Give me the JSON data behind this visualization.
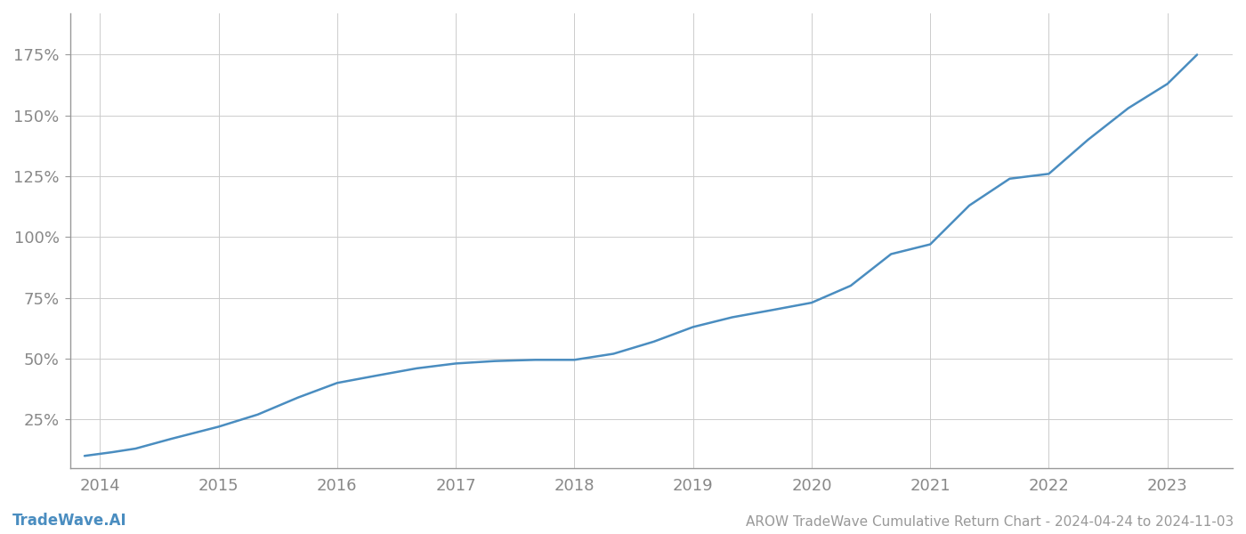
{
  "title": "AROW TradeWave Cumulative Return Chart - 2024-04-24 to 2024-11-03",
  "watermark": "TradeWave.AI",
  "line_color": "#4a8dc0",
  "background_color": "#ffffff",
  "grid_color": "#cccccc",
  "x_years": [
    2014,
    2015,
    2016,
    2017,
    2018,
    2019,
    2020,
    2021,
    2022,
    2023
  ],
  "x_values": [
    2013.87,
    2014.1,
    2014.3,
    2014.6,
    2015.0,
    2015.33,
    2015.67,
    2016.0,
    2016.33,
    2016.67,
    2017.0,
    2017.33,
    2017.67,
    2018.0,
    2018.33,
    2018.67,
    2019.0,
    2019.33,
    2019.67,
    2020.0,
    2020.33,
    2020.67,
    2021.0,
    2021.33,
    2021.67,
    2022.0,
    2022.33,
    2022.67,
    2023.0,
    2023.25
  ],
  "y_values": [
    10.0,
    11.5,
    13.0,
    17.0,
    22.0,
    27.0,
    34.0,
    40.0,
    43.0,
    46.0,
    48.0,
    49.0,
    49.5,
    49.5,
    52.0,
    57.0,
    63.0,
    67.0,
    70.0,
    73.0,
    80.0,
    93.0,
    97.0,
    113.0,
    124.0,
    126.0,
    140.0,
    153.0,
    163.0,
    175.0
  ],
  "yticks": [
    25,
    50,
    75,
    100,
    125,
    150,
    175
  ],
  "ylim": [
    5,
    192
  ],
  "xlim": [
    2013.75,
    2023.55
  ],
  "title_fontsize": 11,
  "tick_fontsize": 13,
  "watermark_fontsize": 12,
  "line_width": 1.8,
  "axis_color": "#999999",
  "tick_color": "#888888",
  "title_color": "#999999"
}
